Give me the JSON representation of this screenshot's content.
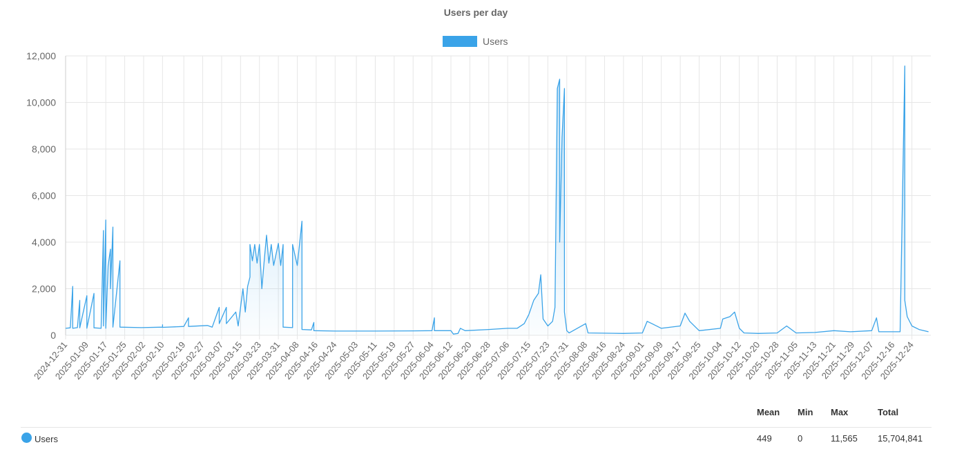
{
  "chart_data": {
    "type": "area",
    "title": "Users per day",
    "xlabel": "",
    "ylabel": "",
    "ylim": [
      0,
      12000
    ],
    "yticks": [
      "0",
      "2,000",
      "4,000",
      "6,000",
      "8,000",
      "10,000",
      "12,000"
    ],
    "x_ticks": [
      "2024-12-31",
      "2025-01-09",
      "2025-01-17",
      "2025-01-25",
      "2025-02-02",
      "2025-02-10",
      "2025-02-19",
      "2025-02-27",
      "2025-03-07",
      "2025-03-15",
      "2025-03-23",
      "2025-03-31",
      "2025-04-08",
      "2025-04-16",
      "2025-04-24",
      "2025-05-03",
      "2025-05-11",
      "2025-05-19",
      "2025-05-27",
      "2025-06-04",
      "2025-06-12",
      "2025-06-20",
      "2025-06-28",
      "2025-07-06",
      "2025-07-15",
      "2025-07-23",
      "2025-07-31",
      "2025-08-08",
      "2025-08-16",
      "2025-08-24",
      "2025-09-01",
      "2025-09-09",
      "2025-09-17",
      "2025-09-25",
      "2025-10-04",
      "2025-10-12",
      "2025-10-20",
      "2025-10-28",
      "2025-11-05",
      "2025-11-13",
      "2025-11-21",
      "2025-11-29",
      "2025-12-07",
      "2025-12-16",
      "2025-12-24"
    ],
    "legend": {
      "position": "top",
      "entries": [
        "Users"
      ]
    },
    "grid": true,
    "series": [
      {
        "name": "Users",
        "color": "#3aa3e8",
        "points": [
          [
            "2024-12-31",
            300
          ],
          [
            "2025-01-02",
            320
          ],
          [
            "2025-01-03",
            2100
          ],
          [
            "2025-01-03",
            300
          ],
          [
            "2025-01-05",
            330
          ],
          [
            "2025-01-06",
            1500
          ],
          [
            "2025-01-06",
            320
          ],
          [
            "2025-01-09",
            1700
          ],
          [
            "2025-01-09",
            300
          ],
          [
            "2025-01-12",
            1800
          ],
          [
            "2025-01-12",
            320
          ],
          [
            "2025-01-15",
            300
          ],
          [
            "2025-01-16",
            4500
          ],
          [
            "2025-01-16",
            400
          ],
          [
            "2025-01-17",
            4950
          ],
          [
            "2025-01-17",
            300
          ],
          [
            "2025-01-18",
            3000
          ],
          [
            "2025-01-19",
            3700
          ],
          [
            "2025-01-19",
            2000
          ],
          [
            "2025-01-20",
            4650
          ],
          [
            "2025-01-20",
            350
          ],
          [
            "2025-01-23",
            3200
          ],
          [
            "2025-01-23",
            350
          ],
          [
            "2025-02-01",
            330
          ],
          [
            "2025-02-10",
            350
          ],
          [
            "2025-02-10",
            450
          ],
          [
            "2025-02-10",
            340
          ],
          [
            "2025-02-19",
            380
          ],
          [
            "2025-02-21",
            750
          ],
          [
            "2025-02-21",
            380
          ],
          [
            "2025-03-01",
            420
          ],
          [
            "2025-03-03",
            350
          ],
          [
            "2025-03-06",
            1200
          ],
          [
            "2025-03-06",
            500
          ],
          [
            "2025-03-09",
            1200
          ],
          [
            "2025-03-09",
            500
          ],
          [
            "2025-03-13",
            1000
          ],
          [
            "2025-03-14",
            400
          ],
          [
            "2025-03-16",
            2000
          ],
          [
            "2025-03-17",
            1000
          ],
          [
            "2025-03-18",
            2100
          ],
          [
            "2025-03-19",
            2500
          ],
          [
            "2025-03-19",
            3900
          ],
          [
            "2025-03-20",
            3200
          ],
          [
            "2025-03-21",
            3900
          ],
          [
            "2025-03-22",
            3100
          ],
          [
            "2025-03-23",
            3900
          ],
          [
            "2025-03-24",
            2000
          ],
          [
            "2025-03-25",
            3200
          ],
          [
            "2025-03-26",
            4300
          ],
          [
            "2025-03-27",
            3100
          ],
          [
            "2025-03-28",
            3900
          ],
          [
            "2025-03-29",
            3000
          ],
          [
            "2025-03-31",
            3950
          ],
          [
            "2025-04-01",
            3000
          ],
          [
            "2025-04-02",
            3900
          ],
          [
            "2025-04-02",
            350
          ],
          [
            "2025-04-06",
            330
          ],
          [
            "2025-04-06",
            3900
          ],
          [
            "2025-04-08",
            3000
          ],
          [
            "2025-04-09",
            3950
          ],
          [
            "2025-04-10",
            4900
          ],
          [
            "2025-04-10",
            250
          ],
          [
            "2025-04-14",
            230
          ],
          [
            "2025-04-15",
            550
          ],
          [
            "2025-04-15",
            200
          ],
          [
            "2025-04-24",
            180
          ],
          [
            "2025-05-11",
            180
          ],
          [
            "2025-05-27",
            190
          ],
          [
            "2025-06-04",
            200
          ],
          [
            "2025-06-05",
            750
          ],
          [
            "2025-06-05",
            200
          ],
          [
            "2025-06-12",
            200
          ],
          [
            "2025-06-13",
            50
          ],
          [
            "2025-06-15",
            80
          ],
          [
            "2025-06-16",
            300
          ],
          [
            "2025-06-18",
            200
          ],
          [
            "2025-06-28",
            250
          ],
          [
            "2025-07-06",
            300
          ],
          [
            "2025-07-10",
            300
          ],
          [
            "2025-07-13",
            500
          ],
          [
            "2025-07-15",
            900
          ],
          [
            "2025-07-17",
            1500
          ],
          [
            "2025-07-19",
            1800
          ],
          [
            "2025-07-20",
            2600
          ],
          [
            "2025-07-21",
            700
          ],
          [
            "2025-07-23",
            400
          ],
          [
            "2025-07-25",
            600
          ],
          [
            "2025-07-26",
            1200
          ],
          [
            "2025-07-27",
            10600
          ],
          [
            "2025-07-28",
            11000
          ],
          [
            "2025-07-28",
            4000
          ],
          [
            "2025-07-29",
            8500
          ],
          [
            "2025-07-30",
            10600
          ],
          [
            "2025-07-30",
            1000
          ],
          [
            "2025-07-31",
            200
          ],
          [
            "2025-08-01",
            100
          ],
          [
            "2025-08-08",
            500
          ],
          [
            "2025-08-09",
            100
          ],
          [
            "2025-08-24",
            80
          ],
          [
            "2025-09-01",
            100
          ],
          [
            "2025-09-03",
            600
          ],
          [
            "2025-09-05",
            500
          ],
          [
            "2025-09-09",
            300
          ],
          [
            "2025-09-17",
            400
          ],
          [
            "2025-09-19",
            950
          ],
          [
            "2025-09-21",
            600
          ],
          [
            "2025-09-25",
            200
          ],
          [
            "2025-10-04",
            300
          ],
          [
            "2025-10-05",
            700
          ],
          [
            "2025-10-08",
            800
          ],
          [
            "2025-10-10",
            1000
          ],
          [
            "2025-10-12",
            300
          ],
          [
            "2025-10-14",
            100
          ],
          [
            "2025-10-20",
            80
          ],
          [
            "2025-10-28",
            100
          ],
          [
            "2025-11-01",
            400
          ],
          [
            "2025-11-05",
            100
          ],
          [
            "2025-11-13",
            120
          ],
          [
            "2025-11-21",
            200
          ],
          [
            "2025-11-28",
            150
          ],
          [
            "2025-12-07",
            200
          ],
          [
            "2025-12-09",
            750
          ],
          [
            "2025-12-10",
            150
          ],
          [
            "2025-12-19",
            150
          ],
          [
            "2025-12-21",
            11565
          ],
          [
            "2025-12-21",
            1500
          ],
          [
            "2025-12-22",
            800
          ],
          [
            "2025-12-24",
            400
          ],
          [
            "2025-12-27",
            250
          ],
          [
            "2025-12-31",
            150
          ]
        ]
      }
    ]
  },
  "stats": {
    "headers": {
      "mean": "Mean",
      "min": "Min",
      "max": "Max",
      "total": "Total"
    },
    "rows": [
      {
        "series": "Users",
        "color": "#3aa3e8",
        "mean": "449",
        "min": "0",
        "max": "11,565",
        "total": "15,704,841"
      }
    ]
  }
}
